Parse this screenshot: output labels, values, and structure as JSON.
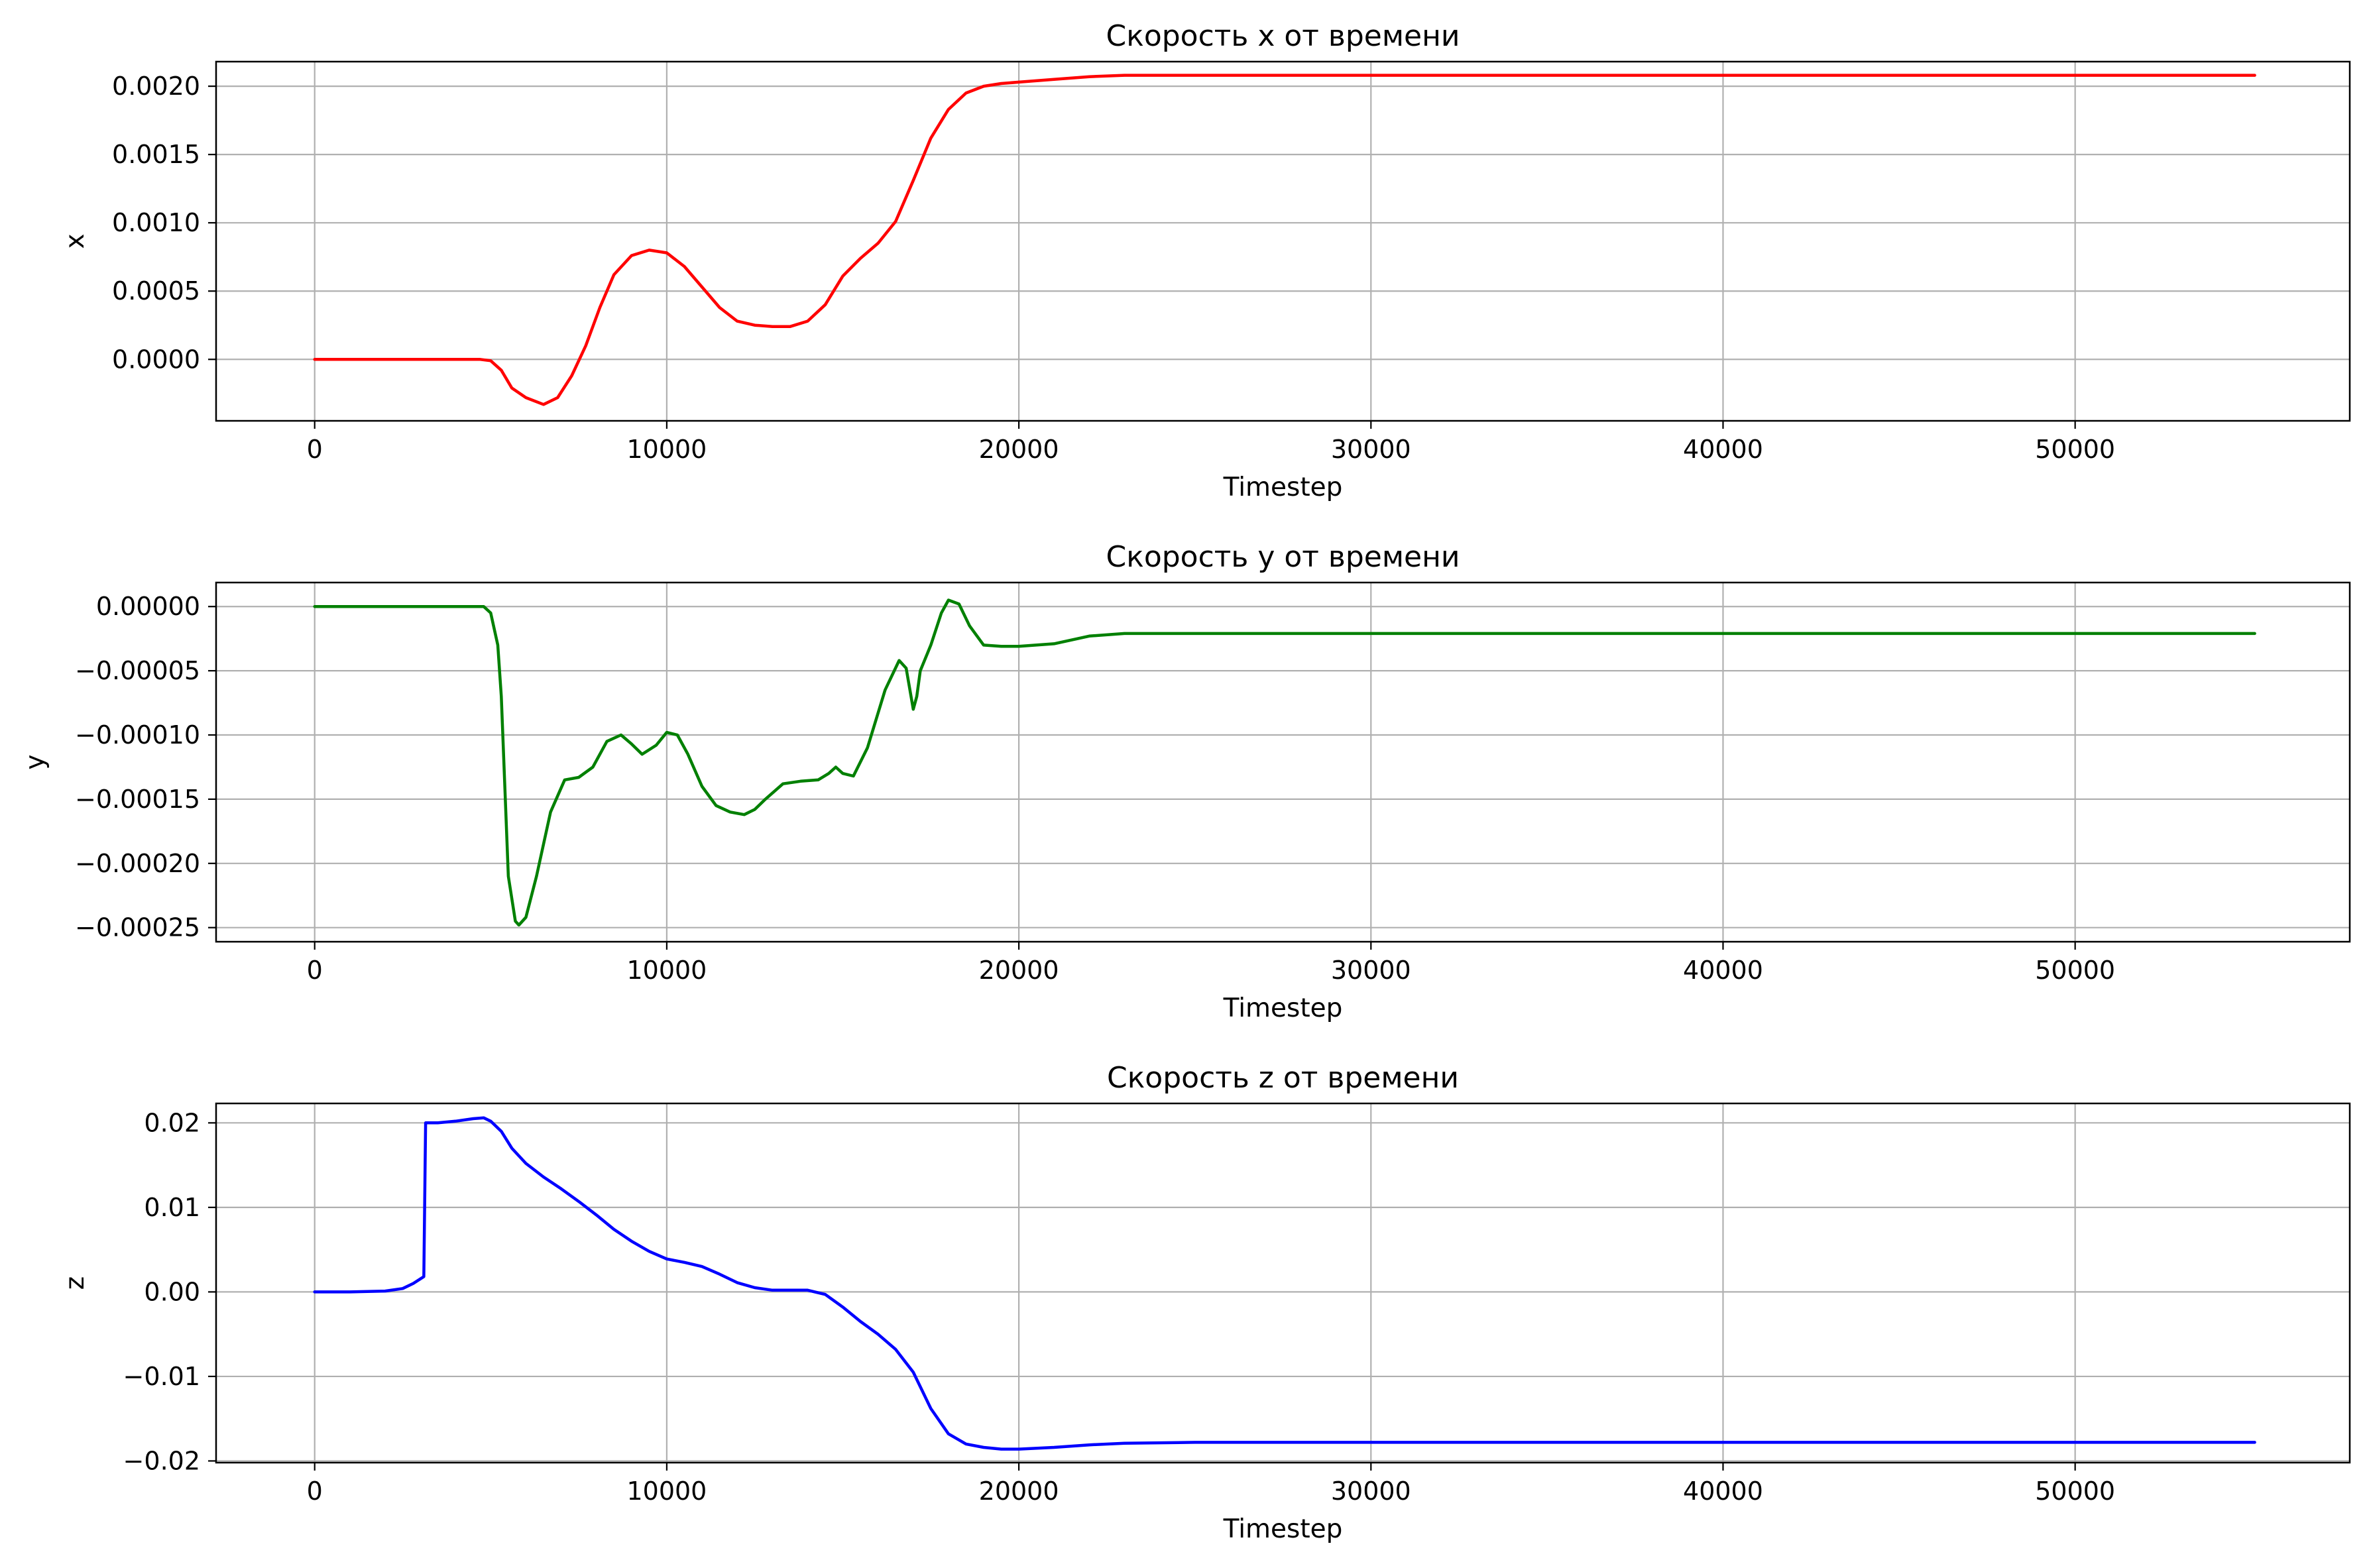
{
  "chart_data": [
    {
      "type": "line",
      "title": "Скорость x от времени",
      "xlabel": "Timestep",
      "ylabel": "x",
      "xlim": [
        -2800,
        57800
      ],
      "ylim": [
        -0.00045,
        0.00218
      ],
      "xticks": [
        0,
        10000,
        20000,
        30000,
        40000,
        50000
      ],
      "xtick_labels": [
        "0",
        "10000",
        "20000",
        "30000",
        "40000",
        "50000"
      ],
      "yticks": [
        0,
        0.0005,
        0.001,
        0.0015,
        0.002
      ],
      "ytick_labels": [
        "0.0000",
        "0.0005",
        "0.0010",
        "0.0015",
        "0.0020"
      ],
      "grid": true,
      "color": "#ff0000",
      "x": [
        0,
        1000,
        2000,
        3000,
        4000,
        4700,
        5000,
        5300,
        5600,
        6000,
        6500,
        6900,
        7300,
        7700,
        8100,
        8500,
        9000,
        9500,
        10000,
        10500,
        11000,
        11500,
        12000,
        12500,
        13000,
        13500,
        14000,
        14500,
        15000,
        15500,
        16000,
        16500,
        17000,
        17500,
        18000,
        18500,
        19000,
        19500,
        20000,
        21000,
        22000,
        23000,
        24000,
        25000,
        30000,
        40000,
        50000,
        55100
      ],
      "y": [
        0,
        0,
        0,
        0,
        0,
        0,
        -1e-05,
        -8e-05,
        -0.00021,
        -0.00028,
        -0.00033,
        -0.00028,
        -0.00012,
        0.0001,
        0.00038,
        0.00062,
        0.00076,
        0.0008,
        0.00078,
        0.00068,
        0.00053,
        0.00038,
        0.00028,
        0.00025,
        0.00024,
        0.00024,
        0.00028,
        0.0004,
        0.00061,
        0.00074,
        0.00085,
        0.00101,
        0.00131,
        0.00162,
        0.00183,
        0.00195,
        0.002,
        0.00202,
        0.00203,
        0.00205,
        0.00207,
        0.00208,
        0.00208,
        0.00208,
        0.00208,
        0.00208,
        0.00208,
        0.00208
      ]
    },
    {
      "type": "line",
      "title": "Скорость y от времени",
      "xlabel": "Timestep",
      "ylabel": "y",
      "xlim": [
        -2800,
        57800
      ],
      "ylim": [
        -0.000261,
        1.87e-05
      ],
      "xticks": [
        0,
        10000,
        20000,
        30000,
        40000,
        50000
      ],
      "xtick_labels": [
        "0",
        "10000",
        "20000",
        "30000",
        "40000",
        "50000"
      ],
      "yticks": [
        0,
        -5e-05,
        -0.0001,
        -0.00015,
        -0.0002,
        -0.00025
      ],
      "ytick_labels": [
        "0.00000",
        "−0.00005",
        "−0.00010",
        "−0.00015",
        "−0.00020",
        "−0.00025"
      ],
      "grid": true,
      "color": "#008000",
      "x": [
        0,
        1000,
        2000,
        3000,
        4000,
        4800,
        5000,
        5200,
        5300,
        5500,
        5700,
        5800,
        6000,
        6300,
        6700,
        7100,
        7500,
        7900,
        8300,
        8700,
        9000,
        9300,
        9700,
        10000,
        10300,
        10600,
        11000,
        11400,
        11800,
        12200,
        12500,
        12800,
        13300,
        13800,
        14300,
        14600,
        14800,
        15000,
        15300,
        15700,
        16200,
        16600,
        16800,
        17000,
        17100,
        17200,
        17500,
        17800,
        18000,
        18300,
        18600,
        19000,
        19500,
        20000,
        21000,
        22000,
        23000,
        25000,
        30000,
        40000,
        50000,
        55100
      ],
      "y": [
        0,
        0,
        0,
        0,
        0,
        0,
        -5e-06,
        -3e-05,
        -7e-05,
        -0.00021,
        -0.000245,
        -0.000248,
        -0.000242,
        -0.00021,
        -0.00016,
        -0.000135,
        -0.000133,
        -0.000125,
        -0.000105,
        -0.0001,
        -0.000107,
        -0.000115,
        -0.000108,
        -9.8e-05,
        -0.0001,
        -0.000115,
        -0.00014,
        -0.000155,
        -0.00016,
        -0.000162,
        -0.000158,
        -0.00015,
        -0.000138,
        -0.000136,
        -0.000135,
        -0.00013,
        -0.000125,
        -0.00013,
        -0.000132,
        -0.00011,
        -6.5e-05,
        -4.2e-05,
        -4.8e-05,
        -8e-05,
        -7e-05,
        -5e-05,
        -3e-05,
        -5e-06,
        5e-06,
        2e-06,
        -1.5e-05,
        -3e-05,
        -3.1e-05,
        -3.1e-05,
        -2.9e-05,
        -2.3e-05,
        -2.1e-05,
        -2.1e-05,
        -2.1e-05,
        -2.1e-05,
        -2.1e-05,
        -2.1e-05
      ]
    },
    {
      "type": "line",
      "title": "Скорость z от времени",
      "xlabel": "Timestep",
      "ylabel": "z",
      "xlim": [
        -2800,
        57800
      ],
      "ylim": [
        -0.0202,
        0.0223
      ],
      "xticks": [
        0,
        10000,
        20000,
        30000,
        40000,
        50000
      ],
      "xtick_labels": [
        "0",
        "10000",
        "20000",
        "30000",
        "40000",
        "50000"
      ],
      "yticks": [
        0.02,
        0.01,
        0,
        -0.01,
        -0.02
      ],
      "ytick_labels": [
        "0.02",
        "0.01",
        "0.00",
        "−0.01",
        "−0.02"
      ],
      "grid": true,
      "color": "#0000ff",
      "x": [
        0,
        1000,
        2000,
        2500,
        2800,
        3100,
        3150,
        3500,
        4000,
        4500,
        4800,
        5000,
        5300,
        5600,
        6000,
        6500,
        7000,
        7500,
        8000,
        8500,
        9000,
        9500,
        10000,
        10500,
        11000,
        11500,
        12000,
        12500,
        13000,
        13500,
        14000,
        14500,
        15000,
        15500,
        16000,
        16500,
        17000,
        17500,
        18000,
        18500,
        19000,
        19500,
        20000,
        21000,
        22000,
        23000,
        25000,
        30000,
        40000,
        50000,
        55100
      ],
      "y": [
        0,
        0,
        0.0001,
        0.0004,
        0.001,
        0.0018,
        0.02,
        0.02,
        0.0202,
        0.0205,
        0.0206,
        0.0202,
        0.019,
        0.017,
        0.0152,
        0.0136,
        0.0122,
        0.0107,
        0.0091,
        0.0074,
        0.006,
        0.0048,
        0.0039,
        0.0035,
        0.003,
        0.0021,
        0.0011,
        0.0005,
        0.0002,
        0.0002,
        0.0002,
        -0.0003,
        -0.0018,
        -0.0035,
        -0.005,
        -0.0068,
        -0.0095,
        -0.0138,
        -0.0168,
        -0.018,
        -0.0184,
        -0.0186,
        -0.0186,
        -0.0184,
        -0.0181,
        -0.0179,
        -0.0178,
        -0.0178,
        -0.0178,
        -0.0178,
        -0.0178
      ]
    }
  ]
}
